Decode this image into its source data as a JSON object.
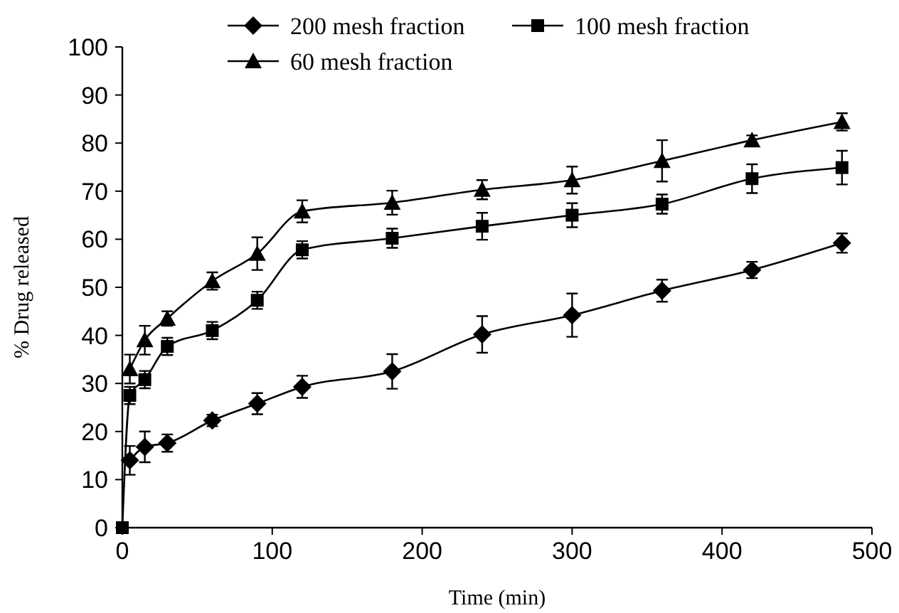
{
  "chart_data": {
    "type": "line",
    "xlabel": "Time (min)",
    "ylabel": "% Drug released",
    "xlim": [
      0,
      500
    ],
    "xticks": [
      0,
      100,
      200,
      300,
      400,
      500
    ],
    "ylim": [
      0,
      100
    ],
    "yticks": [
      0,
      10,
      20,
      30,
      40,
      50,
      60,
      70,
      80,
      90,
      100
    ],
    "x": [
      0,
      5,
      15,
      30,
      60,
      90,
      120,
      180,
      240,
      300,
      360,
      420,
      480
    ],
    "legend": "top",
    "grid": false,
    "series": [
      {
        "name": "200 mesh fraction",
        "color": "#000000",
        "marker": "diamond",
        "values": [
          null,
          14,
          16.8,
          17.6,
          22.3,
          25.8,
          29.3,
          32.5,
          40.2,
          44.2,
          49.3,
          53.6,
          59.2
        ],
        "errors": [
          null,
          3,
          3.2,
          1.8,
          1.2,
          2.2,
          2.3,
          3.6,
          3.8,
          4.5,
          2.3,
          1.7,
          2
        ]
      },
      {
        "name": "100 mesh fraction",
        "color": "#000000",
        "marker": "square",
        "values": [
          0,
          27.5,
          30.8,
          37.7,
          41,
          47.3,
          57.8,
          60.2,
          62.7,
          65,
          67.3,
          72.6,
          74.9
        ],
        "errors": [
          null,
          1.8,
          1.8,
          1.8,
          1.8,
          1.8,
          1.8,
          2,
          2.8,
          2.5,
          2,
          3,
          3.5
        ]
      },
      {
        "name": "60 mesh fraction",
        "color": "#000000",
        "marker": "triangle",
        "values": [
          null,
          33,
          39,
          43.5,
          51.3,
          57,
          65.8,
          67.6,
          70.3,
          72.3,
          76.3,
          80.6,
          84.4
        ],
        "errors": [
          null,
          3,
          3,
          1.5,
          1.8,
          3.4,
          2.3,
          2.5,
          2,
          2.8,
          4.3,
          1,
          1.8
        ]
      }
    ]
  }
}
